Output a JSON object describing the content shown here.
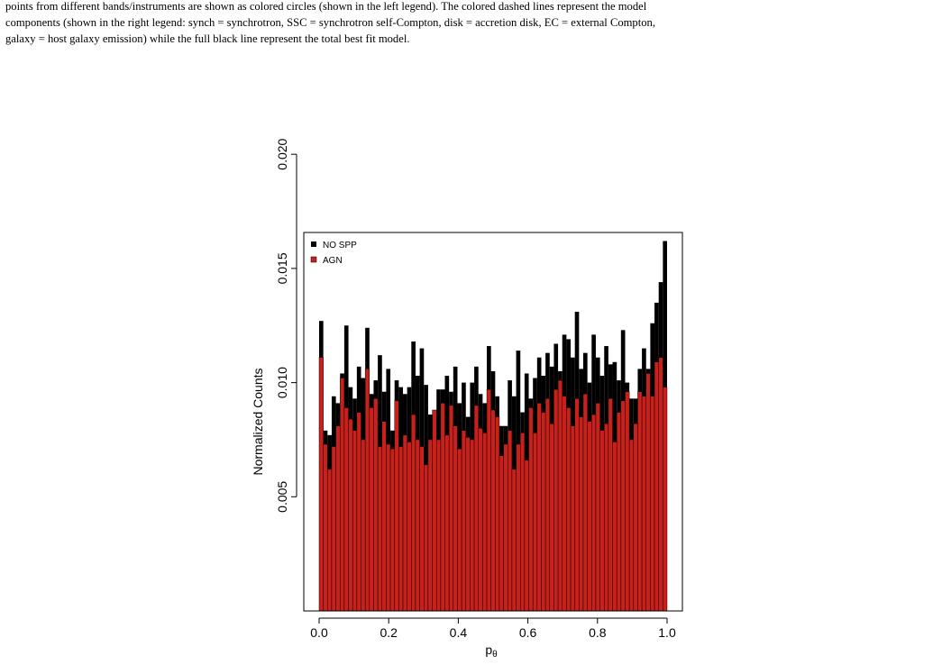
{
  "caption_lines": [
    "points from different bands/instruments are shown as colored circles (shown in the left legend).  The colored dashed lines represent the model",
    "components (shown in the right legend: synch = synchrotron, SSC = synchrotron self-Compton, disk = accretion disk, EC = external Compton,",
    "galaxy = host galaxy emission) while the full black line represent the total best fit model."
  ],
  "chart_data": {
    "type": "bar",
    "title": "",
    "xlabel": "p",
    "xlabel_subscript": "θ",
    "ylabel": "Normalized Counts",
    "xlim": [
      0.0,
      1.0
    ],
    "ylim": [
      0.0,
      0.0206
    ],
    "xticks": [
      0.0,
      0.2,
      0.4,
      0.6,
      0.8,
      1.0
    ],
    "xtick_labels": [
      "0.0",
      "0.2",
      "0.4",
      "0.6",
      "0.8",
      "1.0"
    ],
    "yticks": [
      0.005,
      0.01,
      0.015,
      0.02
    ],
    "ytick_labels": [
      "0.005",
      "0.010",
      "0.015",
      "0.020"
    ],
    "legend_position": "top-left",
    "series": [
      {
        "name": "NO SPP",
        "color": "#000000",
        "values": [
          0.0127,
          0.0079,
          0.0077,
          0.0094,
          0.0091,
          0.0104,
          0.0125,
          0.0098,
          0.0093,
          0.0107,
          0.0102,
          0.0124,
          0.0095,
          0.0101,
          0.0112,
          0.0096,
          0.0106,
          0.0079,
          0.0101,
          0.0098,
          0.0095,
          0.0098,
          0.0118,
          0.0103,
          0.0115,
          0.0099,
          0.0086,
          0.0086,
          0.0097,
          0.0097,
          0.0103,
          0.0096,
          0.0107,
          0.0091,
          0.01,
          0.0085,
          0.01,
          0.0107,
          0.0095,
          0.0091,
          0.0116,
          0.0105,
          0.0094,
          0.0081,
          0.0081,
          0.0101,
          0.0094,
          0.0114,
          0.0087,
          0.0104,
          0.0093,
          0.0102,
          0.0111,
          0.0103,
          0.0113,
          0.0107,
          0.0117,
          0.0105,
          0.0121,
          0.0119,
          0.0111,
          0.0131,
          0.0106,
          0.0113,
          0.01,
          0.0121,
          0.0111,
          0.0103,
          0.0116,
          0.0108,
          0.0109,
          0.0101,
          0.0123,
          0.01,
          0.0093,
          0.0093,
          0.0106,
          0.0115,
          0.0106,
          0.0126,
          0.0135,
          0.0144,
          0.0162
        ]
      },
      {
        "name": "AGN",
        "color": "#c8201a",
        "values": [
          0.0111,
          0.0073,
          0.0062,
          0.0072,
          0.0081,
          0.0102,
          0.0089,
          0.0084,
          0.0079,
          0.0087,
          0.0075,
          0.0106,
          0.0089,
          0.0093,
          0.0072,
          0.0083,
          0.0073,
          0.0071,
          0.0092,
          0.0072,
          0.0077,
          0.0074,
          0.0086,
          0.0075,
          0.0072,
          0.0064,
          0.0075,
          0.0088,
          0.0075,
          0.0091,
          0.0077,
          0.009,
          0.0081,
          0.0071,
          0.0079,
          0.0076,
          0.0075,
          0.009,
          0.008,
          0.0078,
          0.0097,
          0.0088,
          0.0085,
          0.0068,
          0.0073,
          0.0079,
          0.0062,
          0.0073,
          0.0078,
          0.0066,
          0.0089,
          0.0078,
          0.0091,
          0.0087,
          0.0093,
          0.0082,
          0.0097,
          0.0101,
          0.0094,
          0.0089,
          0.0081,
          0.0093,
          0.0085,
          0.0095,
          0.0083,
          0.0086,
          0.0091,
          0.0079,
          0.0082,
          0.0093,
          0.0074,
          0.0087,
          0.0092,
          0.0096,
          0.0075,
          0.0082,
          0.0096,
          0.0094,
          0.0104,
          0.0094,
          0.0109,
          0.0111,
          0.0098
        ]
      }
    ]
  }
}
